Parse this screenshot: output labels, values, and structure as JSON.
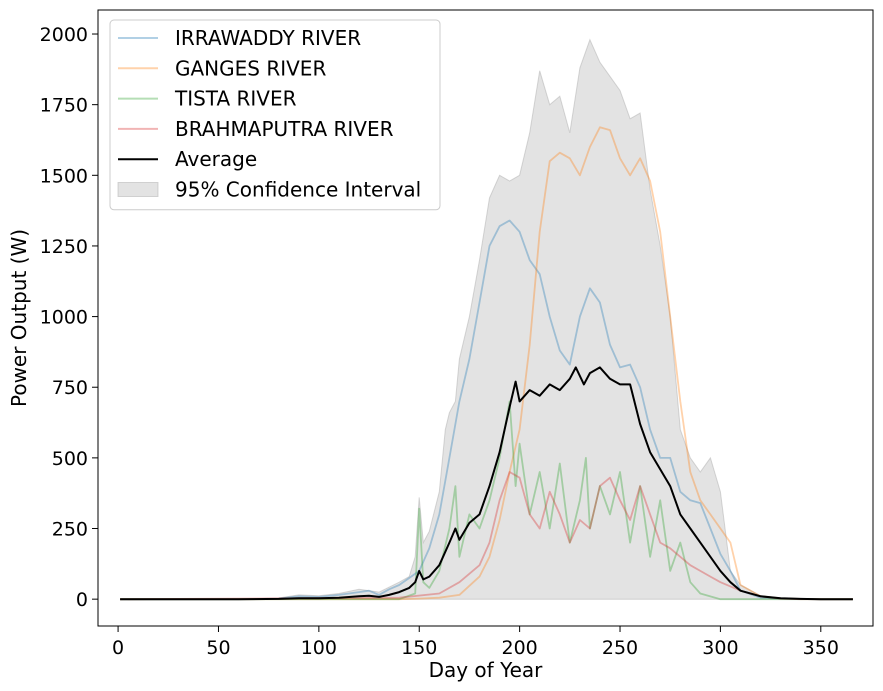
{
  "chart_data": {
    "type": "line",
    "title": "",
    "xlabel": "Day of Year",
    "ylabel": "Power Output (W)",
    "xlim": [
      -10,
      376
    ],
    "ylim": [
      -95,
      2085
    ],
    "xticks": [
      0,
      50,
      100,
      150,
      200,
      250,
      300,
      350
    ],
    "yticks": [
      0,
      250,
      500,
      750,
      1000,
      1250,
      1500,
      1750,
      2000
    ],
    "grid": false,
    "legend_position": "top-left",
    "colors": {
      "IRRAWADDY RIVER": "#1f77b4",
      "GANGES RIVER": "#ff7f0e",
      "TISTA RIVER": "#2ca02c",
      "BRAHMAPUTRA RIVER": "#d62728",
      "Average": "#000000",
      "band": "#b0b0b0"
    },
    "series": [
      {
        "name": "IRRAWADDY RIVER",
        "x": [
          1,
          60,
          80,
          90,
          100,
          110,
          120,
          125,
          130,
          135,
          140,
          145,
          150,
          155,
          160,
          165,
          170,
          175,
          180,
          185,
          190,
          195,
          200,
          205,
          210,
          215,
          220,
          225,
          230,
          235,
          240,
          245,
          250,
          255,
          260,
          265,
          270,
          275,
          280,
          285,
          290,
          295,
          300,
          305,
          310,
          320,
          330,
          340,
          350,
          366
        ],
        "y": [
          0,
          0,
          2,
          10,
          8,
          15,
          25,
          30,
          15,
          35,
          50,
          75,
          100,
          180,
          300,
          500,
          700,
          850,
          1050,
          1250,
          1320,
          1340,
          1300,
          1200,
          1150,
          1000,
          880,
          830,
          1000,
          1100,
          1050,
          900,
          820,
          830,
          750,
          600,
          500,
          500,
          380,
          350,
          340,
          250,
          160,
          100,
          30,
          5,
          2,
          1,
          0,
          0
        ]
      },
      {
        "name": "GANGES RIVER",
        "x": [
          1,
          140,
          150,
          160,
          170,
          180,
          185,
          190,
          195,
          200,
          205,
          210,
          215,
          220,
          225,
          230,
          235,
          240,
          245,
          250,
          255,
          260,
          265,
          270,
          275,
          280,
          285,
          290,
          295,
          300,
          305,
          310,
          320,
          330,
          340,
          350,
          366
        ],
        "y": [
          0,
          0,
          2,
          5,
          15,
          80,
          150,
          280,
          450,
          600,
          900,
          1300,
          1550,
          1580,
          1560,
          1500,
          1600,
          1670,
          1660,
          1560,
          1500,
          1560,
          1480,
          1300,
          1000,
          700,
          450,
          350,
          300,
          250,
          200,
          50,
          10,
          3,
          1,
          0,
          0
        ]
      },
      {
        "name": "TISTA RIVER",
        "x": [
          1,
          140,
          148,
          150,
          152,
          155,
          160,
          165,
          168,
          170,
          175,
          180,
          185,
          190,
          195,
          198,
          200,
          205,
          210,
          215,
          220,
          225,
          230,
          233,
          235,
          240,
          245,
          250,
          255,
          260,
          265,
          270,
          275,
          280,
          285,
          290,
          300,
          310,
          366
        ],
        "y": [
          0,
          0,
          20,
          320,
          60,
          40,
          100,
          250,
          400,
          150,
          300,
          250,
          350,
          500,
          700,
          400,
          550,
          300,
          450,
          250,
          480,
          200,
          350,
          500,
          250,
          400,
          300,
          450,
          200,
          400,
          150,
          350,
          100,
          200,
          60,
          20,
          0,
          0,
          0
        ]
      },
      {
        "name": "BRAHMAPUTRA RIVER",
        "x": [
          1,
          140,
          160,
          170,
          180,
          185,
          190,
          195,
          200,
          205,
          210,
          215,
          220,
          225,
          230,
          235,
          240,
          245,
          250,
          255,
          260,
          265,
          270,
          275,
          280,
          285,
          290,
          295,
          300,
          310,
          320,
          330,
          340,
          366
        ],
        "y": [
          0,
          5,
          20,
          60,
          120,
          200,
          350,
          450,
          430,
          300,
          250,
          380,
          300,
          200,
          280,
          250,
          400,
          430,
          350,
          280,
          400,
          300,
          200,
          180,
          150,
          120,
          100,
          80,
          60,
          30,
          10,
          2,
          0,
          0
        ]
      },
      {
        "name": "Average",
        "x": [
          1,
          60,
          80,
          90,
          100,
          110,
          120,
          125,
          130,
          135,
          140,
          145,
          148,
          150,
          152,
          155,
          160,
          165,
          168,
          170,
          175,
          180,
          185,
          190,
          195,
          198,
          200,
          205,
          210,
          215,
          220,
          225,
          228,
          232,
          235,
          240,
          245,
          250,
          255,
          260,
          265,
          270,
          275,
          280,
          285,
          290,
          295,
          300,
          305,
          310,
          320,
          330,
          340,
          350,
          366
        ],
        "y": [
          0,
          0,
          1,
          3,
          3,
          5,
          10,
          12,
          8,
          15,
          25,
          40,
          60,
          100,
          70,
          80,
          120,
          200,
          250,
          210,
          270,
          300,
          400,
          520,
          680,
          770,
          700,
          740,
          720,
          760,
          740,
          780,
          820,
          760,
          800,
          820,
          780,
          760,
          760,
          620,
          520,
          460,
          400,
          300,
          250,
          200,
          150,
          100,
          60,
          30,
          10,
          3,
          1,
          0,
          0
        ]
      }
    ],
    "confidence_interval": {
      "name": "95% Confidence Interval",
      "x": [
        1,
        60,
        80,
        90,
        100,
        110,
        120,
        130,
        140,
        145,
        148,
        150,
        152,
        155,
        160,
        163,
        165,
        168,
        170,
        175,
        180,
        185,
        190,
        195,
        200,
        205,
        210,
        215,
        220,
        225,
        230,
        235,
        240,
        245,
        250,
        255,
        260,
        265,
        270,
        275,
        280,
        285,
        290,
        295,
        300,
        305,
        310,
        320,
        330,
        340,
        350,
        366
      ],
      "lower": [
        0,
        0,
        0,
        0,
        0,
        0,
        0,
        0,
        0,
        0,
        0,
        0,
        0,
        0,
        0,
        0,
        0,
        0,
        0,
        0,
        0,
        0,
        0,
        0,
        0,
        0,
        0,
        0,
        0,
        0,
        0,
        0,
        0,
        0,
        0,
        0,
        0,
        0,
        0,
        0,
        0,
        0,
        0,
        0,
        0,
        0,
        0,
        0,
        0,
        0,
        0,
        0
      ],
      "upper": [
        0,
        0,
        4,
        15,
        12,
        20,
        35,
        25,
        60,
        80,
        150,
        360,
        200,
        240,
        380,
        600,
        660,
        700,
        850,
        1000,
        1200,
        1420,
        1500,
        1480,
        1500,
        1650,
        1870,
        1750,
        1780,
        1650,
        1880,
        1980,
        1900,
        1850,
        1800,
        1700,
        1720,
        1450,
        1250,
        1000,
        600,
        500,
        450,
        500,
        380,
        100,
        50,
        12,
        4,
        2,
        0,
        0
      ]
    }
  }
}
